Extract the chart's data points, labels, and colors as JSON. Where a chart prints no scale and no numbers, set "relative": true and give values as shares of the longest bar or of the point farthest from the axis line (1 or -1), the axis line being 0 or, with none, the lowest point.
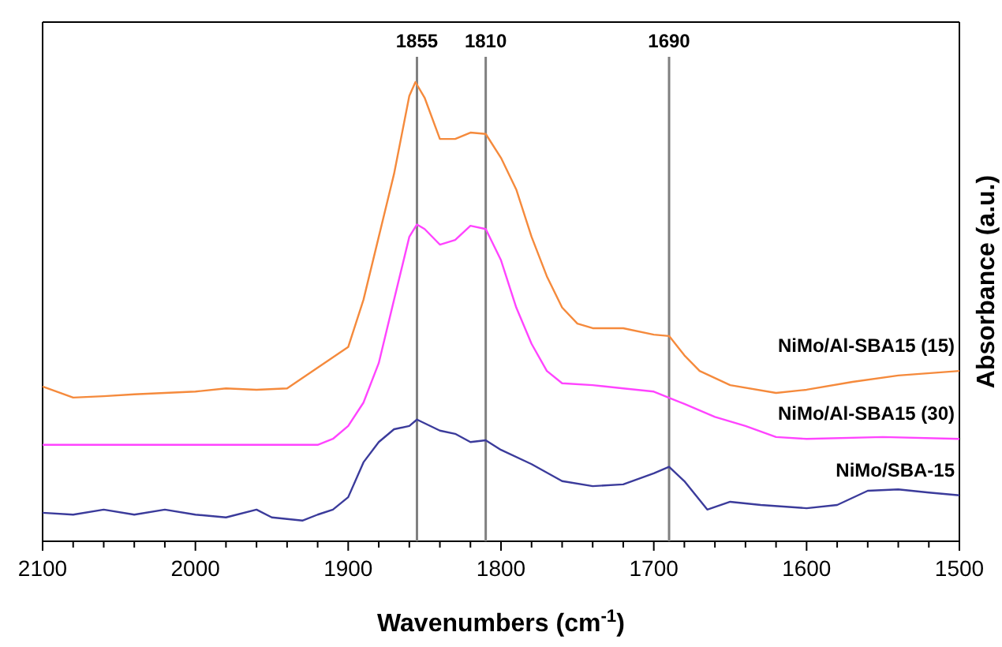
{
  "chart_data": {
    "type": "line",
    "relative": true,
    "xlabel": "Wavenumbers (cm$^{-1}$)",
    "ylabel": "Absorbance (a.u.)",
    "xlim": [
      2100,
      1500
    ],
    "xticks": [
      2100,
      {
        "value": 2080,
        "label": null
      },
      {
        "value": 2060,
        "label": null
      },
      {
        "value": 2040,
        "label": null
      },
      {
        "value": 2020,
        "label": null
      },
      2000,
      {
        "value": 1980,
        "label": null
      },
      {
        "value": 1960,
        "label": null
      },
      {
        "value": 1940,
        "label": null
      },
      {
        "value": 1920,
        "label": null
      },
      1900,
      {
        "value": 1880,
        "label": null
      },
      {
        "value": 1860,
        "label": null
      },
      {
        "value": 1840,
        "label": null
      },
      {
        "value": 1820,
        "label": null
      },
      1800,
      {
        "value": 1780,
        "label": null
      },
      {
        "value": 1760,
        "label": null
      },
      {
        "value": 1740,
        "label": null
      },
      {
        "value": 1720,
        "label": null
      },
      1700,
      {
        "value": 1680,
        "label": null
      },
      {
        "value": 1660,
        "label": null
      },
      {
        "value": 1640,
        "label": null
      },
      {
        "value": 1620,
        "label": null
      },
      1600,
      {
        "value": 1580,
        "label": null
      },
      {
        "value": 1560,
        "label": null
      },
      {
        "value": 1540,
        "label": null
      },
      {
        "value": 1520,
        "label": null
      },
      1500
    ],
    "tick_labels": "x",
    "grid": false,
    "legend": false,
    "marker": "none",
    "line_style": "solid",
    "ref_lines": [
      {
        "axis": "x",
        "value": 1855,
        "label": "1855",
        "color": "#808080"
      },
      {
        "axis": "x",
        "value": 1810,
        "label": "1810",
        "color": "#808080"
      },
      {
        "axis": "x",
        "value": 1690,
        "label": "1690",
        "color": "#808080"
      }
    ],
    "series": [
      {
        "name": "NiMo/Al-SBA15 (15)",
        "color": "#f58a3c",
        "x": [
          2100,
          2080,
          2060,
          2040,
          2000,
          1980,
          1960,
          1940,
          1920,
          1900,
          1890,
          1880,
          1870,
          1860,
          1856,
          1850,
          1840,
          1830,
          1820,
          1810,
          1800,
          1790,
          1780,
          1770,
          1760,
          1750,
          1740,
          1720,
          1700,
          1690,
          1680,
          1670,
          1650,
          1620,
          1600,
          1570,
          1540,
          1500
        ],
        "values": [
          0.337,
          0.313,
          0.316,
          0.32,
          0.326,
          0.333,
          0.33,
          0.333,
          0.378,
          0.423,
          0.526,
          0.663,
          0.8,
          0.97,
          1,
          0.966,
          0.876,
          0.876,
          0.89,
          0.887,
          0.835,
          0.766,
          0.663,
          0.577,
          0.509,
          0.474,
          0.464,
          0.464,
          0.45,
          0.447,
          0.405,
          0.371,
          0.34,
          0.323,
          0.33,
          0.347,
          0.361,
          0.371
        ]
      },
      {
        "name": "NiMo/Al-SBA15 (30)",
        "color": "#ff44ff",
        "x": [
          2100,
          2000,
          1920,
          1910,
          1900,
          1890,
          1880,
          1870,
          1860,
          1855,
          1850,
          1840,
          1830,
          1820,
          1810,
          1800,
          1790,
          1780,
          1770,
          1760,
          1740,
          1720,
          1700,
          1680,
          1660,
          1640,
          1620,
          1600,
          1550,
          1500
        ],
        "values": [
          0.21,
          0.21,
          0.21,
          0.223,
          0.251,
          0.302,
          0.388,
          0.526,
          0.663,
          0.69,
          0.68,
          0.646,
          0.656,
          0.687,
          0.68,
          0.612,
          0.509,
          0.43,
          0.371,
          0.344,
          0.34,
          0.333,
          0.326,
          0.299,
          0.271,
          0.251,
          0.227,
          0.223,
          0.227,
          0.223
        ]
      },
      {
        "name": "NiMo/SBA-15",
        "color": "#3b3b9b",
        "x": [
          2100,
          2080,
          2060,
          2040,
          2020,
          2000,
          1980,
          1960,
          1950,
          1930,
          1920,
          1910,
          1900,
          1890,
          1880,
          1870,
          1860,
          1855,
          1840,
          1830,
          1820,
          1810,
          1800,
          1780,
          1760,
          1740,
          1720,
          1700,
          1690,
          1680,
          1665,
          1650,
          1630,
          1600,
          1580,
          1560,
          1540,
          1520,
          1500
        ],
        "values": [
          0.062,
          0.058,
          0.069,
          0.058,
          0.069,
          0.058,
          0.052,
          0.069,
          0.052,
          0.045,
          0.058,
          0.069,
          0.096,
          0.172,
          0.216,
          0.244,
          0.251,
          0.265,
          0.241,
          0.234,
          0.216,
          0.22,
          0.199,
          0.168,
          0.131,
          0.12,
          0.124,
          0.148,
          0.162,
          0.131,
          0.069,
          0.086,
          0.079,
          0.072,
          0.079,
          0.11,
          0.113,
          0.106,
          0.1
        ]
      }
    ]
  }
}
